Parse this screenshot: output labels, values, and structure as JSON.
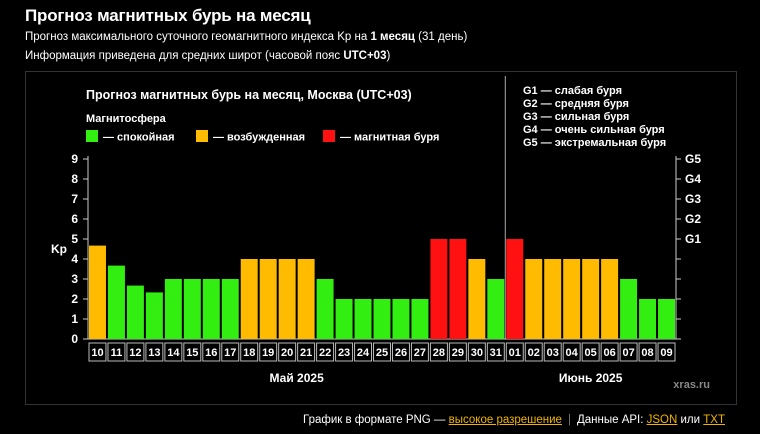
{
  "header": {
    "title": "Прогноз магнитных бурь на месяц",
    "line1_prefix": "Прогноз максимального суточного геомагнитного индекса Kp на ",
    "line1_bold": "1 месяц",
    "line1_suffix": " (31 день)",
    "line2_prefix": "Информация приведена для средних широт (часовой пояс ",
    "line2_bold": "UTC+03",
    "line2_suffix": ")"
  },
  "footer": {
    "png_text": "График в формате PNG — ",
    "png_link": "высокое разрешение",
    "separator": "|",
    "api_text": "Данные API: ",
    "json_link": "JSON",
    "or_text": " или ",
    "txt_link": "TXT"
  },
  "chart_data": {
    "type": "bar",
    "title": "Прогноз магнитных бурь на месяц, Москва (UTC+03)",
    "ylabel": "Kp",
    "ylim": [
      0,
      9
    ],
    "yticks": [
      "0",
      "1",
      "2",
      "3",
      "4",
      "5",
      "6",
      "7",
      "8",
      "9"
    ],
    "right_ticks": [
      {
        "label": "G1",
        "value": 5
      },
      {
        "label": "G2",
        "value": 6
      },
      {
        "label": "G3",
        "value": 7
      },
      {
        "label": "G4",
        "value": 8
      },
      {
        "label": "G5",
        "value": 9
      }
    ],
    "legend_title": "Магнитосфера",
    "legend": [
      {
        "label": "— спокойная",
        "color": "#33ee11"
      },
      {
        "label": "— возбужденная",
        "color": "#ffbb00"
      },
      {
        "label": "— магнитная буря",
        "color": "#ff1111"
      }
    ],
    "g_scale": [
      "G1 — слабая буря",
      "G2 — средняя буря",
      "G3 — сильная буря",
      "G4 — очень сильная буря",
      "G5 — экстремальная буря"
    ],
    "categories": [
      "10",
      "11",
      "12",
      "13",
      "14",
      "15",
      "16",
      "17",
      "18",
      "19",
      "20",
      "21",
      "22",
      "23",
      "24",
      "25",
      "26",
      "27",
      "28",
      "29",
      "30",
      "31",
      "01",
      "02",
      "03",
      "04",
      "05",
      "06",
      "07",
      "08",
      "09"
    ],
    "values": [
      4.67,
      3.67,
      2.67,
      2.33,
      3,
      3,
      3,
      3,
      4,
      4,
      4,
      4,
      3,
      2,
      2,
      2,
      2,
      2,
      5,
      5,
      4,
      3,
      5,
      4,
      4,
      4,
      4,
      4,
      3,
      2,
      2
    ],
    "month_labels": [
      {
        "label": "Май 2025",
        "from": 0,
        "to": 21
      },
      {
        "label": "Июнь 2025",
        "from": 22,
        "to": 30
      }
    ],
    "colors": {
      "quiet": "#33ee11",
      "active": "#ffbb00",
      "storm": "#ff1111"
    },
    "watermark": "xras.ru"
  }
}
